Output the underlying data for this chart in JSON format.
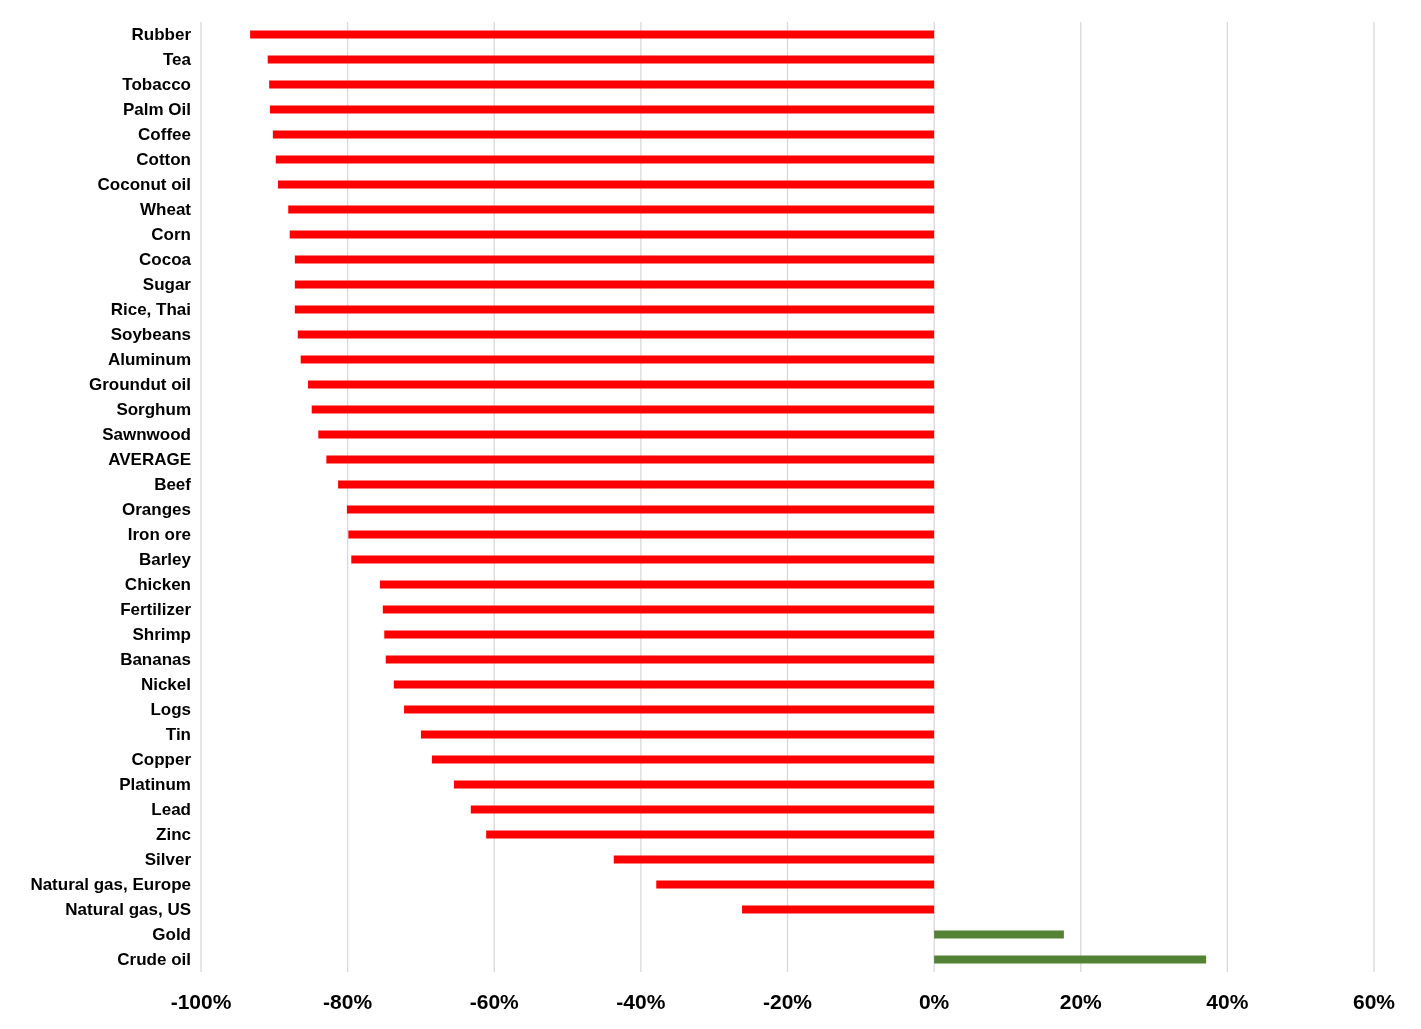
{
  "chart_data": {
    "type": "bar",
    "orientation": "horizontal",
    "categories": [
      "Rubber",
      "Tea",
      "Tobacco",
      "Palm Oil",
      "Coffee",
      "Cotton",
      "Coconut oil",
      "Wheat",
      "Corn",
      "Cocoa",
      "Sugar",
      "Rice, Thai",
      "Soybeans",
      "Aluminum",
      "Groundut oil",
      "Sorghum",
      "Sawnwood",
      "AVERAGE",
      "Beef",
      "Oranges",
      "Iron ore",
      "Barley",
      "Chicken",
      "Fertilizer",
      "Shrimp",
      "Bananas",
      "Nickel",
      "Logs",
      "Tin",
      "Copper",
      "Platinum",
      "Lead",
      "Zinc",
      "Silver",
      "Natural gas, Europe",
      "Natural gas, US",
      "Gold",
      "Crude oil"
    ],
    "values": [
      -93.3,
      -90.9,
      -90.7,
      -90.6,
      -90.2,
      -89.8,
      -89.5,
      -88.1,
      -87.9,
      -87.2,
      -87.2,
      -87.2,
      -86.8,
      -86.4,
      -85.4,
      -84.9,
      -84.0,
      -82.9,
      -81.3,
      -80.1,
      -79.9,
      -79.5,
      -75.6,
      -75.2,
      -75.0,
      -74.8,
      -73.7,
      -72.3,
      -70.0,
      -68.5,
      -65.5,
      -63.2,
      -61.1,
      -43.7,
      -37.9,
      -26.2,
      17.7,
      37.1
    ],
    "colors": [
      "#ff0000",
      "#ff0000",
      "#ff0000",
      "#ff0000",
      "#ff0000",
      "#ff0000",
      "#ff0000",
      "#ff0000",
      "#ff0000",
      "#ff0000",
      "#ff0000",
      "#ff0000",
      "#ff0000",
      "#ff0000",
      "#ff0000",
      "#ff0000",
      "#ff0000",
      "#ff0000",
      "#ff0000",
      "#ff0000",
      "#ff0000",
      "#ff0000",
      "#ff0000",
      "#ff0000",
      "#ff0000",
      "#ff0000",
      "#ff0000",
      "#ff0000",
      "#ff0000",
      "#ff0000",
      "#ff0000",
      "#ff0000",
      "#ff0000",
      "#ff0000",
      "#ff0000",
      "#ff0000",
      "#548235",
      "#548235"
    ],
    "xlim": [
      -100,
      60
    ],
    "xticks": [
      {
        "value": -100,
        "label": "-100%"
      },
      {
        "value": -80,
        "label": "-80%"
      },
      {
        "value": -60,
        "label": "-60%"
      },
      {
        "value": -40,
        "label": "-40%"
      },
      {
        "value": -20,
        "label": "-20%"
      },
      {
        "value": 0,
        "label": "0%"
      },
      {
        "value": 20,
        "label": "20%"
      },
      {
        "value": 40,
        "label": "40%"
      },
      {
        "value": 60,
        "label": "60%"
      }
    ],
    "grid": "x"
  }
}
